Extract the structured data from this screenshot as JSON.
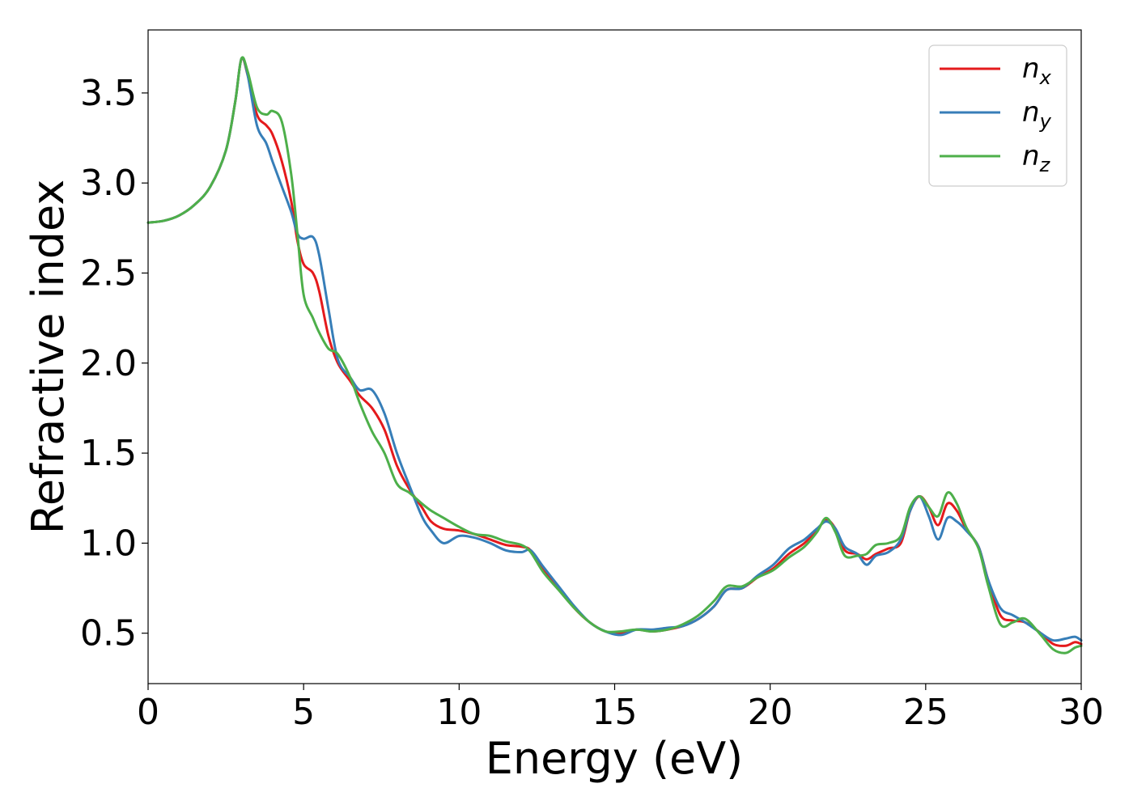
{
  "chart_data": {
    "type": "line",
    "xlabel": "Energy (eV)",
    "ylabel": "Refractive index",
    "xlim": [
      0,
      30
    ],
    "ylim": [
      0.22,
      3.85
    ],
    "xticks": [
      0,
      5,
      10,
      15,
      20,
      25,
      30
    ],
    "xtick_labels": [
      "0",
      "5",
      "10",
      "15",
      "20",
      "25",
      "30"
    ],
    "yticks": [
      0.5,
      1.0,
      1.5,
      2.0,
      2.5,
      3.0,
      3.5
    ],
    "ytick_labels": [
      "0.5",
      "1.0",
      "1.5",
      "2.0",
      "2.5",
      "3.0",
      "3.5"
    ],
    "grid": false,
    "legend_position": "top-right",
    "series": [
      {
        "name": "n",
        "subscript": "x",
        "color": "#e41a1c",
        "points": [
          [
            0,
            2.78
          ],
          [
            0.5,
            2.79
          ],
          [
            1,
            2.82
          ],
          [
            1.5,
            2.88
          ],
          [
            2,
            2.98
          ],
          [
            2.5,
            3.18
          ],
          [
            2.8,
            3.45
          ],
          [
            3.0,
            3.69
          ],
          [
            3.2,
            3.6
          ],
          [
            3.5,
            3.38
          ],
          [
            3.8,
            3.32
          ],
          [
            4.0,
            3.27
          ],
          [
            4.3,
            3.12
          ],
          [
            4.6,
            2.9
          ],
          [
            4.8,
            2.68
          ],
          [
            5.0,
            2.55
          ],
          [
            5.3,
            2.5
          ],
          [
            5.5,
            2.4
          ],
          [
            5.8,
            2.15
          ],
          [
            6.1,
            2.0
          ],
          [
            6.5,
            1.9
          ],
          [
            6.8,
            1.82
          ],
          [
            7.2,
            1.75
          ],
          [
            7.6,
            1.63
          ],
          [
            8.0,
            1.43
          ],
          [
            8.4,
            1.3
          ],
          [
            8.8,
            1.2
          ],
          [
            9.1,
            1.12
          ],
          [
            9.5,
            1.08
          ],
          [
            10.0,
            1.07
          ],
          [
            10.5,
            1.05
          ],
          [
            11.0,
            1.02
          ],
          [
            11.5,
            0.99
          ],
          [
            12.0,
            0.98
          ],
          [
            12.3,
            0.96
          ],
          [
            12.7,
            0.85
          ],
          [
            13.2,
            0.75
          ],
          [
            13.7,
            0.64
          ],
          [
            14.2,
            0.56
          ],
          [
            14.7,
            0.51
          ],
          [
            15.2,
            0.5
          ],
          [
            15.7,
            0.52
          ],
          [
            16.2,
            0.51
          ],
          [
            16.7,
            0.52
          ],
          [
            17.2,
            0.54
          ],
          [
            17.7,
            0.58
          ],
          [
            18.2,
            0.65
          ],
          [
            18.6,
            0.74
          ],
          [
            19.1,
            0.75
          ],
          [
            19.6,
            0.81
          ],
          [
            20.1,
            0.86
          ],
          [
            20.6,
            0.94
          ],
          [
            21.1,
            1.0
          ],
          [
            21.5,
            1.07
          ],
          [
            21.8,
            1.13
          ],
          [
            22.1,
            1.08
          ],
          [
            22.4,
            0.96
          ],
          [
            22.8,
            0.94
          ],
          [
            23.1,
            0.91
          ],
          [
            23.4,
            0.94
          ],
          [
            23.8,
            0.97
          ],
          [
            24.2,
            1.0
          ],
          [
            24.5,
            1.18
          ],
          [
            24.8,
            1.26
          ],
          [
            25.1,
            1.2
          ],
          [
            25.4,
            1.1
          ],
          [
            25.7,
            1.22
          ],
          [
            26.0,
            1.18
          ],
          [
            26.3,
            1.08
          ],
          [
            26.7,
            0.98
          ],
          [
            27.0,
            0.8
          ],
          [
            27.4,
            0.6
          ],
          [
            27.8,
            0.57
          ],
          [
            28.2,
            0.56
          ],
          [
            28.7,
            0.5
          ],
          [
            29.1,
            0.44
          ],
          [
            29.5,
            0.43
          ],
          [
            29.8,
            0.45
          ],
          [
            30,
            0.44
          ]
        ]
      },
      {
        "name": "n",
        "subscript": "y",
        "color": "#377eb8",
        "points": [
          [
            0,
            2.78
          ],
          [
            0.5,
            2.79
          ],
          [
            1,
            2.82
          ],
          [
            1.5,
            2.88
          ],
          [
            2,
            2.98
          ],
          [
            2.5,
            3.18
          ],
          [
            2.8,
            3.45
          ],
          [
            3.0,
            3.69
          ],
          [
            3.2,
            3.6
          ],
          [
            3.5,
            3.32
          ],
          [
            3.8,
            3.22
          ],
          [
            4.0,
            3.12
          ],
          [
            4.3,
            2.98
          ],
          [
            4.6,
            2.84
          ],
          [
            4.8,
            2.72
          ],
          [
            5.0,
            2.69
          ],
          [
            5.3,
            2.7
          ],
          [
            5.5,
            2.6
          ],
          [
            5.8,
            2.3
          ],
          [
            6.1,
            2.02
          ],
          [
            6.5,
            1.92
          ],
          [
            6.8,
            1.85
          ],
          [
            7.2,
            1.85
          ],
          [
            7.6,
            1.72
          ],
          [
            8.0,
            1.5
          ],
          [
            8.4,
            1.32
          ],
          [
            8.8,
            1.15
          ],
          [
            9.1,
            1.07
          ],
          [
            9.5,
            1.0
          ],
          [
            10.0,
            1.04
          ],
          [
            10.5,
            1.03
          ],
          [
            11.0,
            1.0
          ],
          [
            11.5,
            0.96
          ],
          [
            12.0,
            0.95
          ],
          [
            12.3,
            0.96
          ],
          [
            12.7,
            0.87
          ],
          [
            13.2,
            0.76
          ],
          [
            13.7,
            0.65
          ],
          [
            14.2,
            0.56
          ],
          [
            14.7,
            0.51
          ],
          [
            15.2,
            0.49
          ],
          [
            15.7,
            0.52
          ],
          [
            16.2,
            0.52
          ],
          [
            16.7,
            0.53
          ],
          [
            17.2,
            0.54
          ],
          [
            17.7,
            0.58
          ],
          [
            18.2,
            0.65
          ],
          [
            18.6,
            0.74
          ],
          [
            19.1,
            0.75
          ],
          [
            19.6,
            0.82
          ],
          [
            20.1,
            0.88
          ],
          [
            20.6,
            0.97
          ],
          [
            21.1,
            1.02
          ],
          [
            21.5,
            1.08
          ],
          [
            21.8,
            1.12
          ],
          [
            22.1,
            1.08
          ],
          [
            22.4,
            0.98
          ],
          [
            22.8,
            0.94
          ],
          [
            23.1,
            0.88
          ],
          [
            23.4,
            0.93
          ],
          [
            23.8,
            0.95
          ],
          [
            24.2,
            1.02
          ],
          [
            24.5,
            1.18
          ],
          [
            24.8,
            1.26
          ],
          [
            25.1,
            1.15
          ],
          [
            25.4,
            1.02
          ],
          [
            25.7,
            1.14
          ],
          [
            26.0,
            1.12
          ],
          [
            26.3,
            1.07
          ],
          [
            26.7,
            0.98
          ],
          [
            27.0,
            0.8
          ],
          [
            27.4,
            0.64
          ],
          [
            27.8,
            0.6
          ],
          [
            28.2,
            0.56
          ],
          [
            28.7,
            0.5
          ],
          [
            29.1,
            0.46
          ],
          [
            29.5,
            0.47
          ],
          [
            29.8,
            0.48
          ],
          [
            30,
            0.46
          ]
        ]
      },
      {
        "name": "n",
        "subscript": "z",
        "color": "#4daf4a",
        "points": [
          [
            0,
            2.78
          ],
          [
            0.5,
            2.79
          ],
          [
            1,
            2.82
          ],
          [
            1.5,
            2.88
          ],
          [
            2,
            2.98
          ],
          [
            2.5,
            3.18
          ],
          [
            2.8,
            3.45
          ],
          [
            3.0,
            3.69
          ],
          [
            3.2,
            3.62
          ],
          [
            3.5,
            3.42
          ],
          [
            3.8,
            3.38
          ],
          [
            4.0,
            3.4
          ],
          [
            4.3,
            3.34
          ],
          [
            4.6,
            3.05
          ],
          [
            4.8,
            2.72
          ],
          [
            5.0,
            2.38
          ],
          [
            5.3,
            2.25
          ],
          [
            5.5,
            2.17
          ],
          [
            5.8,
            2.08
          ],
          [
            6.1,
            2.05
          ],
          [
            6.5,
            1.92
          ],
          [
            6.8,
            1.78
          ],
          [
            7.2,
            1.62
          ],
          [
            7.6,
            1.5
          ],
          [
            8.0,
            1.33
          ],
          [
            8.4,
            1.28
          ],
          [
            8.8,
            1.22
          ],
          [
            9.1,
            1.18
          ],
          [
            9.5,
            1.14
          ],
          [
            10.0,
            1.09
          ],
          [
            10.5,
            1.05
          ],
          [
            11.0,
            1.04
          ],
          [
            11.5,
            1.01
          ],
          [
            12.0,
            0.99
          ],
          [
            12.3,
            0.95
          ],
          [
            12.7,
            0.84
          ],
          [
            13.2,
            0.74
          ],
          [
            13.7,
            0.64
          ],
          [
            14.2,
            0.56
          ],
          [
            14.7,
            0.51
          ],
          [
            15.2,
            0.51
          ],
          [
            15.7,
            0.52
          ],
          [
            16.2,
            0.51
          ],
          [
            16.7,
            0.52
          ],
          [
            17.2,
            0.55
          ],
          [
            17.7,
            0.6
          ],
          [
            18.2,
            0.68
          ],
          [
            18.6,
            0.76
          ],
          [
            19.1,
            0.76
          ],
          [
            19.6,
            0.81
          ],
          [
            20.1,
            0.85
          ],
          [
            20.6,
            0.92
          ],
          [
            21.1,
            0.98
          ],
          [
            21.5,
            1.06
          ],
          [
            21.8,
            1.14
          ],
          [
            22.1,
            1.06
          ],
          [
            22.4,
            0.93
          ],
          [
            22.8,
            0.93
          ],
          [
            23.1,
            0.94
          ],
          [
            23.4,
            0.99
          ],
          [
            23.8,
            1.0
          ],
          [
            24.2,
            1.04
          ],
          [
            24.5,
            1.2
          ],
          [
            24.8,
            1.26
          ],
          [
            25.1,
            1.2
          ],
          [
            25.4,
            1.15
          ],
          [
            25.7,
            1.28
          ],
          [
            26.0,
            1.22
          ],
          [
            26.3,
            1.09
          ],
          [
            26.7,
            0.97
          ],
          [
            27.0,
            0.77
          ],
          [
            27.4,
            0.55
          ],
          [
            27.8,
            0.56
          ],
          [
            28.2,
            0.58
          ],
          [
            28.7,
            0.49
          ],
          [
            29.1,
            0.41
          ],
          [
            29.5,
            0.39
          ],
          [
            29.8,
            0.42
          ],
          [
            30,
            0.43
          ]
        ]
      }
    ]
  }
}
